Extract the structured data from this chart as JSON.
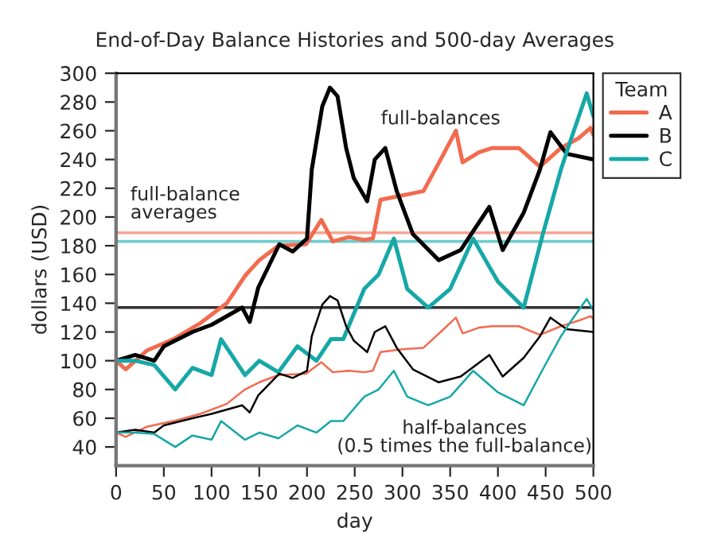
{
  "chart_data": {
    "type": "line",
    "title": "End-of-Day Balance Histories and 500-day Averages",
    "xlabel": "day",
    "ylabel": "dollars (USD)",
    "legend_title": "Team",
    "legend": "right",
    "grid": false,
    "marker": "none",
    "line_style": "solid",
    "xlim": [
      0,
      500
    ],
    "ylim": [
      27,
      300
    ],
    "xticks": [
      0,
      50,
      100,
      150,
      200,
      250,
      300,
      350,
      400,
      450,
      500
    ],
    "yticks": [
      40,
      60,
      80,
      100,
      120,
      140,
      160,
      180,
      200,
      220,
      240,
      260,
      280,
      300
    ],
    "series": [
      {
        "name": "A",
        "color": "#f26b4f",
        "x": [
          0,
          10,
          32,
          60,
          88,
          116,
          135,
          150,
          170,
          199,
          215,
          227,
          244,
          260,
          269,
          277,
          300,
          322,
          340,
          356,
          363,
          380,
          394,
          422,
          444,
          466,
          485,
          497,
          500
        ],
        "values": [
          100,
          94,
          107,
          115,
          126,
          140,
          159,
          170,
          180,
          181,
          198,
          183,
          186,
          184,
          185,
          212,
          215,
          218,
          240,
          260,
          238,
          245,
          248,
          248,
          235,
          248,
          255,
          262,
          257
        ]
      },
      {
        "name": "B",
        "color": "#000000",
        "x": [
          0,
          20,
          40,
          50,
          80,
          100,
          132,
          140,
          149,
          171,
          185,
          200,
          205,
          216,
          224,
          232,
          241,
          249,
          263,
          271,
          282,
          294,
          311,
          338,
          361,
          391,
          405,
          427,
          444,
          455,
          472,
          500
        ],
        "values": [
          100,
          104,
          100,
          110,
          120,
          125,
          137,
          127,
          151,
          181,
          176,
          185,
          233,
          277,
          290,
          284,
          248,
          227,
          211,
          240,
          248,
          218,
          188,
          170,
          177,
          207,
          177,
          203,
          233,
          259,
          244,
          240
        ]
      },
      {
        "name": "C",
        "color": "#17a7a7",
        "x": [
          0,
          20,
          40,
          62,
          80,
          100,
          110,
          135,
          150,
          170,
          190,
          210,
          225,
          238,
          260,
          275,
          291,
          305,
          327,
          350,
          374,
          400,
          427,
          447,
          466,
          477,
          493,
          500
        ],
        "values": [
          100,
          100,
          97,
          80,
          95,
          90,
          115,
          90,
          100,
          92,
          110,
          100,
          115,
          115,
          150,
          160,
          185,
          150,
          137,
          150,
          185,
          155,
          137,
          188,
          233,
          255,
          286,
          270
        ]
      },
      {
        "color": "#f26b4f",
        "x": [
          0,
          10,
          32,
          60,
          88,
          116,
          135,
          150,
          170,
          199,
          215,
          227,
          244,
          260,
          269,
          277,
          300,
          322,
          340,
          356,
          363,
          380,
          394,
          422,
          444,
          466,
          485,
          497,
          500
        ],
        "values": [
          50,
          47,
          54,
          58,
          63,
          70,
          80,
          85,
          90,
          91,
          99,
          92,
          93,
          92,
          93,
          106,
          108,
          109,
          120,
          130,
          119,
          123,
          124,
          124,
          118,
          124,
          128,
          131,
          129
        ]
      },
      {
        "color": "#000000",
        "x": [
          0,
          20,
          40,
          50,
          80,
          100,
          132,
          140,
          149,
          171,
          185,
          200,
          205,
          216,
          224,
          232,
          241,
          249,
          263,
          271,
          282,
          294,
          311,
          338,
          361,
          391,
          405,
          427,
          444,
          455,
          472,
          500
        ],
        "values": [
          50,
          52,
          50,
          55,
          60,
          63,
          69,
          64,
          76,
          91,
          88,
          93,
          117,
          139,
          145,
          142,
          124,
          114,
          106,
          120,
          124,
          109,
          94,
          85,
          89,
          104,
          89,
          102,
          117,
          130,
          122,
          120
        ]
      },
      {
        "color": "#17a7a7",
        "x": [
          0,
          20,
          40,
          62,
          80,
          100,
          110,
          135,
          150,
          170,
          190,
          210,
          225,
          238,
          260,
          275,
          291,
          305,
          327,
          350,
          374,
          400,
          427,
          447,
          466,
          477,
          493,
          500
        ],
        "values": [
          50,
          50,
          49,
          40,
          48,
          45,
          58,
          45,
          50,
          46,
          55,
          50,
          58,
          58,
          75,
          80,
          93,
          75,
          69,
          75,
          93,
          78,
          69,
          94,
          117,
          128,
          143,
          135
        ]
      }
    ],
    "ref_lines": [
      {
        "axis": "y",
        "value": 189,
        "color": "#f7a594"
      },
      {
        "axis": "y",
        "value": 183,
        "color": "#6fcdcd"
      },
      {
        "axis": "y",
        "value": 137,
        "color": "#333333"
      }
    ],
    "annotations": [
      "full-balances",
      "full-balance\naverages",
      "half-balances\n(0.5 times the full-balance)"
    ]
  }
}
